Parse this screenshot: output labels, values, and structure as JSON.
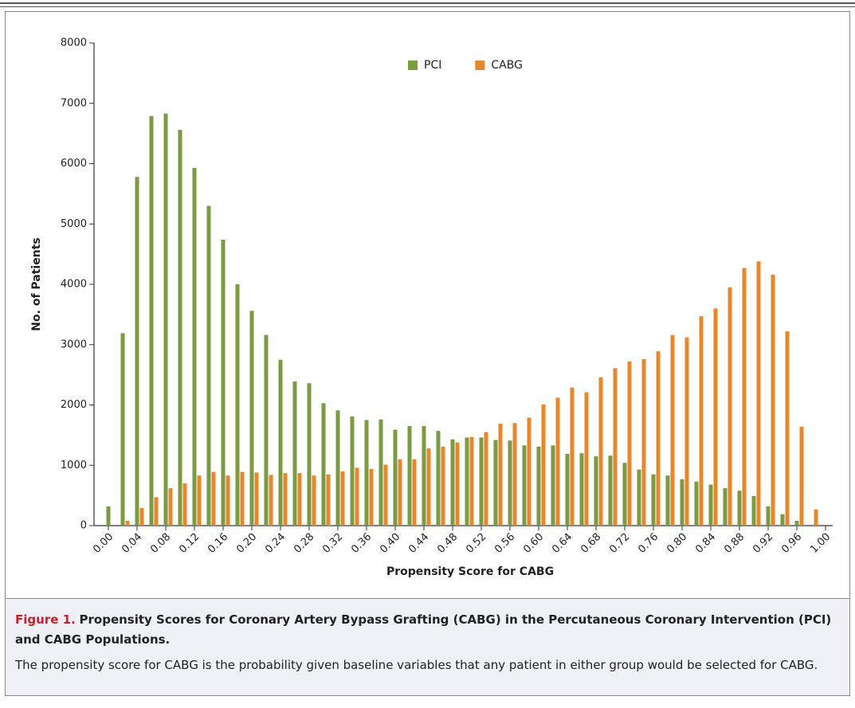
{
  "chart_data": {
    "type": "bar",
    "ylabel": "No. of Patients",
    "xlabel": "Propensity Score for CABG",
    "x": [
      0.0,
      0.02,
      0.04,
      0.06,
      0.08,
      0.1,
      0.12,
      0.14,
      0.16,
      0.18,
      0.2,
      0.22,
      0.24,
      0.26,
      0.28,
      0.3,
      0.32,
      0.34,
      0.36,
      0.38,
      0.4,
      0.42,
      0.44,
      0.46,
      0.48,
      0.5,
      0.52,
      0.54,
      0.56,
      0.58,
      0.6,
      0.62,
      0.64,
      0.66,
      0.68,
      0.7,
      0.72,
      0.74,
      0.76,
      0.78,
      0.8,
      0.82,
      0.84,
      0.86,
      0.88,
      0.9,
      0.92,
      0.94,
      0.96,
      0.98
    ],
    "series": [
      {
        "name": "PCI",
        "color": "#7b9b43",
        "values": [
          320,
          3190,
          5780,
          6790,
          6830,
          6560,
          5930,
          5300,
          4740,
          4000,
          3560,
          3160,
          2750,
          2390,
          2360,
          2030,
          1910,
          1810,
          1750,
          1760,
          1590,
          1650,
          1650,
          1570,
          1430,
          1460,
          1460,
          1420,
          1410,
          1330,
          1310,
          1330,
          1190,
          1200,
          1150,
          1160,
          1040,
          930,
          850,
          830,
          770,
          730,
          680,
          620,
          580,
          490,
          320,
          190,
          80,
          0
        ]
      },
      {
        "name": "CABG",
        "color": "#e8862b",
        "values": [
          0,
          80,
          290,
          470,
          620,
          700,
          830,
          890,
          830,
          890,
          880,
          840,
          870,
          870,
          830,
          850,
          900,
          960,
          940,
          1010,
          1100,
          1100,
          1280,
          1310,
          1380,
          1470,
          1550,
          1690,
          1700,
          1790,
          2010,
          2120,
          2290,
          2210,
          2460,
          2610,
          2720,
          2760,
          2890,
          3160,
          3120,
          3470,
          3600,
          3950,
          4270,
          4380,
          4160,
          3220,
          1640,
          270
        ]
      }
    ],
    "xlim": [
      -0.02,
      1.01
    ],
    "xticks": [
      {
        "value": 0,
        "label": "0.00"
      },
      {
        "value": 0.04,
        "label": "0.04"
      },
      {
        "value": 0.08,
        "label": "0.08"
      },
      {
        "value": 0.12,
        "label": "0.12"
      },
      {
        "value": 0.16,
        "label": "0.16"
      },
      {
        "value": 0.2,
        "label": "0.20"
      },
      {
        "value": 0.24,
        "label": "0.24"
      },
      {
        "value": 0.28,
        "label": "0.28"
      },
      {
        "value": 0.32,
        "label": "0.32"
      },
      {
        "value": 0.36,
        "label": "0.36"
      },
      {
        "value": 0.4,
        "label": "0.40"
      },
      {
        "value": 0.44,
        "label": "0.44"
      },
      {
        "value": 0.48,
        "label": "0.48"
      },
      {
        "value": 0.52,
        "label": "0.52"
      },
      {
        "value": 0.56,
        "label": "0.56"
      },
      {
        "value": 0.6,
        "label": "0.60"
      },
      {
        "value": 0.64,
        "label": "0.64"
      },
      {
        "value": 0.68,
        "label": "0.68"
      },
      {
        "value": 0.72,
        "label": "0.72"
      },
      {
        "value": 0.76,
        "label": "0.76"
      },
      {
        "value": 0.8,
        "label": "0.80"
      },
      {
        "value": 0.84,
        "label": "0.84"
      },
      {
        "value": 0.88,
        "label": "0.88"
      },
      {
        "value": 0.92,
        "label": "0.92"
      },
      {
        "value": 0.96,
        "label": "0.96"
      },
      {
        "value": 1,
        "label": "1.00"
      }
    ],
    "ylim": [
      0,
      8000
    ],
    "yticks": [
      0,
      1000,
      2000,
      3000,
      4000,
      5000,
      6000,
      7000,
      8000
    ],
    "grid": false,
    "legend": "top"
  },
  "caption": {
    "label": "Figure 1.",
    "title": "Propensity Scores for Coronary Artery Bypass Grafting (CABG) in the Percutaneous Coronary Intervention (PCI) and CABG Populations.",
    "text": "The propensity score for CABG is the probability given baseline variables that any patient in either group would be selected for CABG."
  }
}
